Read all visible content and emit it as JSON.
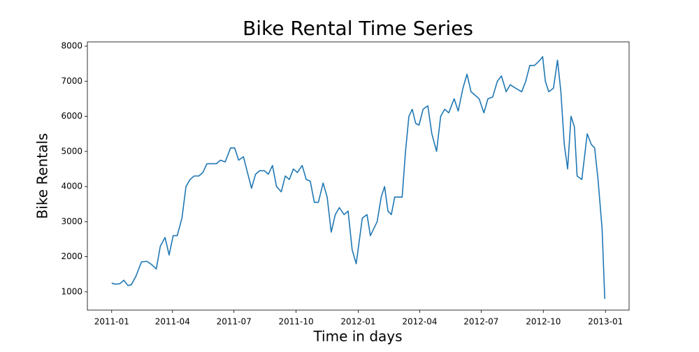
{
  "chart_data": {
    "type": "line",
    "title": "Bike Rental Time Series",
    "x_label": "Time in days",
    "y_label": "Bike Rentals",
    "x": [
      0,
      5,
      12,
      18,
      24,
      29,
      36,
      44,
      52,
      59,
      66,
      72,
      79,
      85,
      91,
      97,
      104,
      110,
      116,
      122,
      129,
      135,
      141,
      147,
      155,
      161,
      168,
      176,
      182,
      188,
      195,
      201,
      207,
      213,
      219,
      226,
      232,
      238,
      244,
      251,
      257,
      263,
      269,
      275,
      282,
      288,
      294,
      300,
      306,
      313,
      319,
      325,
      331,
      337,
      344,
      350,
      356,
      362,
      371,
      378,
      383,
      393,
      399,
      404,
      409,
      414,
      419,
      430,
      435,
      440,
      445,
      450,
      455,
      461,
      468,
      474,
      481,
      487,
      493,
      499,
      507,
      513,
      520,
      526,
      532,
      538,
      544,
      551,
      557,
      564,
      571,
      577,
      584,
      590,
      598,
      607,
      613,
      619,
      626,
      634,
      638,
      642,
      647,
      654,
      660,
      665,
      670,
      675,
      680,
      685,
      689,
      696,
      704,
      710,
      715,
      720,
      726,
      730
    ],
    "series": [
      {
        "name": "Bike Rentals",
        "color": "#1f77b4",
        "values": [
          1250,
          1220,
          1230,
          1330,
          1180,
          1200,
          1450,
          1850,
          1870,
          1780,
          1650,
          2300,
          2550,
          2050,
          2600,
          2600,
          3100,
          4000,
          4200,
          4300,
          4300,
          4400,
          4650,
          4650,
          4650,
          4750,
          4700,
          5100,
          5100,
          4750,
          4850,
          4400,
          3950,
          4350,
          4450,
          4450,
          4350,
          4600,
          4000,
          3850,
          4300,
          4200,
          4500,
          4400,
          4600,
          4200,
          4150,
          3550,
          3550,
          4100,
          3700,
          2700,
          3200,
          3400,
          3200,
          3300,
          2200,
          1800,
          3100,
          3200,
          2600,
          3000,
          3700,
          4000,
          3300,
          3200,
          3700,
          3700,
          5000,
          6000,
          6200,
          5800,
          5750,
          6200,
          6300,
          5500,
          5000,
          6000,
          6200,
          6100,
          6500,
          6150,
          6800,
          7200,
          6700,
          6600,
          6500,
          6100,
          6500,
          6550,
          7000,
          7150,
          6700,
          6900,
          6800,
          6700,
          7000,
          7450,
          7450,
          7600,
          7700,
          7000,
          6700,
          6800,
          7600,
          6700,
          5200,
          4500,
          6000,
          5700,
          4300,
          4200,
          5500,
          5200,
          5100,
          4200,
          2800,
          800
        ]
      }
    ],
    "xlim": [
      -36,
      766
    ],
    "ylim": [
      480,
      8120
    ],
    "xticks": [
      {
        "value": 0,
        "label": "2011-01"
      },
      {
        "value": 90,
        "label": "2011-04"
      },
      {
        "value": 181,
        "label": "2011-07"
      },
      {
        "value": 273,
        "label": "2011-10"
      },
      {
        "value": 365,
        "label": "2012-01"
      },
      {
        "value": 456,
        "label": "2012-04"
      },
      {
        "value": 547,
        "label": "2012-07"
      },
      {
        "value": 639,
        "label": "2012-10"
      },
      {
        "value": 731,
        "label": "2013-01"
      }
    ],
    "yticks": [
      1000,
      2000,
      3000,
      4000,
      5000,
      6000,
      7000,
      8000
    ]
  }
}
